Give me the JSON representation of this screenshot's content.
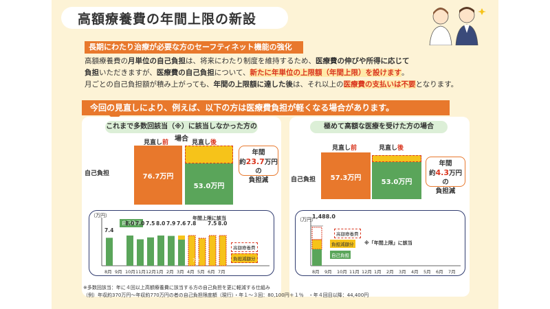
{
  "title": "高額療養費の年間上限の新設",
  "banner": "長期にわたり治療が必要な方のセーフティネット機能の強化",
  "para": {
    "l1a": "高額療養費の",
    "l1b": "月単位の自己負担",
    "l1c": "は、将来にわたり制度を維持するため、",
    "l1d": "医療費の伸びや所得に応じて",
    "l2a": "負担",
    "l2b": "いただきますが、",
    "l2c": "医療費の自己負担",
    "l2d": "について、",
    "l2e": "新たに年単位の上限額（年間上限）を設けます",
    "l2f": "。",
    "l3a": "月ごとの自己負担額が積み上がっても、",
    "l3b": "年間の上限額に達した後",
    "l3c": "は、それ以上の",
    "l3d": "医療費の支払いは不要",
    "l3e": "となります。"
  },
  "section": "今回の見直しにより、例えば、以下の方は医療費負担が軽くなる場合があります。",
  "left": {
    "pill": "これまで多数回該当（※）に該当しなかった方の場合",
    "before_label_a": "見直し",
    "before_label_b": "前",
    "after_label_a": "見直し",
    "after_label_b": "後",
    "self_label": "自己負担",
    "before_value": "76.7万円",
    "after_value": "53.0万円",
    "callout_a": "年間",
    "callout_b": "約",
    "callout_c": "23.7",
    "callout_d": "万円の",
    "callout_e": "負担減",
    "chart": {
      "unit": "（万円）",
      "months": [
        "8月",
        "9月",
        "10月",
        "11月",
        "12月",
        "1月",
        "2月",
        "3月",
        "4月",
        "5月",
        "6月",
        "7月"
      ],
      "values": [
        "7.4",
        "",
        "8.0",
        "7.0",
        "7.5",
        "8.0",
        "7.9",
        "7.6",
        "7.8",
        "",
        "7.5",
        "8.0"
      ],
      "legend_self": "自己負担",
      "legend_kogaku": "高額療養費",
      "legend_reduce": "負担減額分",
      "limit_note": "年間上限に該当",
      "partial": "7.2"
    }
  },
  "right": {
    "pill": "極めて高額な医療を受けた方の場合",
    "before_label_a": "見直し",
    "before_label_b": "前",
    "after_label_a": "見直し",
    "after_label_b": "後",
    "self_label": "自己負担",
    "before_value": "57.3万円",
    "after_value": "53.0万円",
    "callout_a": "年間",
    "callout_b": "約",
    "callout_c": "4.3",
    "callout_d": "万円の",
    "callout_e": "負担減",
    "chart": {
      "unit": "（万円）",
      "first_value": "1,488.0",
      "months": [
        "8月",
        "9月",
        "10月",
        "11月",
        "12月",
        "1月",
        "2月",
        "3月",
        "4月",
        "5月",
        "6月",
        "7月"
      ],
      "legend_kogaku": "高額療養費",
      "legend_reduce": "負担減額分",
      "legend_self": "自己負担",
      "limit_note": "※「年間上限」に該当"
    }
  },
  "footnote1": "※多数回該当：年に４回以上高額療養費に該当する方の自己負担を更に軽減する仕組み",
  "footnote2": "（例）年収約370万円～年収約770万円の者の自己負担限度額（現行）・年１～３回：80,100円＋１％　・年４回目以降：44,400円",
  "colors": {
    "orange": "#e8782c",
    "green": "#5aa55a",
    "yellow": "#f6c31a",
    "navy": "#2f3b6f",
    "red": "#d9351e"
  }
}
